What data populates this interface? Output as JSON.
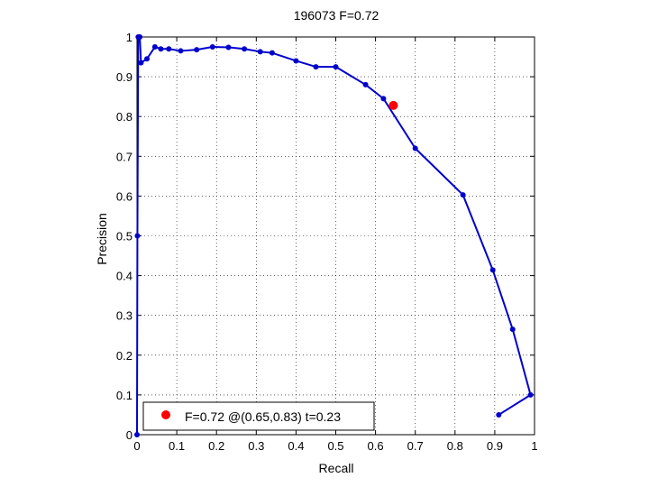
{
  "chart_data": {
    "type": "line",
    "title": "196073 F=0.72",
    "xlabel": "Recall",
    "ylabel": "Precision",
    "xlim": [
      0,
      1
    ],
    "ylim": [
      0,
      1
    ],
    "xticks": [
      0,
      0.1,
      0.2,
      0.3,
      0.4,
      0.5,
      0.6,
      0.7,
      0.8,
      0.9,
      1
    ],
    "yticks": [
      0,
      0.1,
      0.2,
      0.3,
      0.4,
      0.5,
      0.6,
      0.7,
      0.8,
      0.9,
      1
    ],
    "xtick_labels": [
      "0",
      "0.1",
      "0.2",
      "0.3",
      "0.4",
      "0.5",
      "0.6",
      "0.7",
      "0.8",
      "0.9",
      "1"
    ],
    "ytick_labels": [
      "0",
      "0.1",
      "0.2",
      "0.3",
      "0.4",
      "0.5",
      "0.6",
      "0.7",
      "0.8",
      "0.9",
      "1"
    ],
    "grid": true,
    "legend_position": "bottom-left",
    "series": [
      {
        "color": "#0000cc",
        "points": [
          [
            0.0,
            0.0
          ],
          [
            0.001,
            0.5
          ],
          [
            0.003,
            1.0
          ],
          [
            0.007,
            1.0
          ],
          [
            0.01,
            0.935
          ],
          [
            0.025,
            0.945
          ],
          [
            0.045,
            0.975
          ],
          [
            0.06,
            0.97
          ],
          [
            0.08,
            0.97
          ],
          [
            0.11,
            0.965
          ],
          [
            0.15,
            0.968
          ],
          [
            0.19,
            0.975
          ],
          [
            0.23,
            0.974
          ],
          [
            0.27,
            0.97
          ],
          [
            0.31,
            0.963
          ],
          [
            0.34,
            0.96
          ],
          [
            0.4,
            0.94
          ],
          [
            0.45,
            0.925
          ],
          [
            0.5,
            0.925
          ],
          [
            0.575,
            0.88
          ],
          [
            0.62,
            0.845
          ],
          [
            0.7,
            0.72
          ],
          [
            0.82,
            0.603
          ],
          [
            0.895,
            0.414
          ],
          [
            0.945,
            0.265
          ],
          [
            0.99,
            0.1
          ],
          [
            0.91,
            0.05
          ]
        ]
      }
    ],
    "marker": {
      "x": 0.645,
      "y": 0.828,
      "color": "#ff0000",
      "label": "F=0.72 @(0.65,0.83) t=0.23"
    }
  }
}
